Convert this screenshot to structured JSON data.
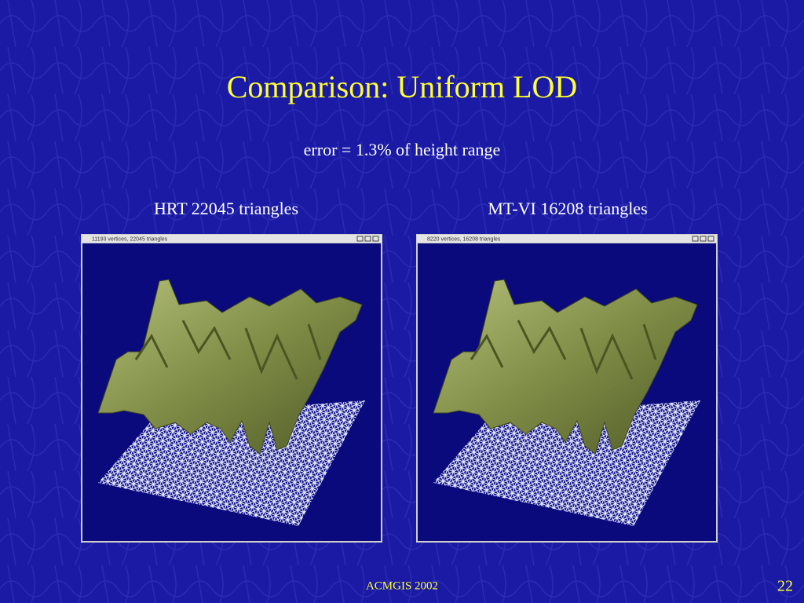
{
  "title": "Comparison: Uniform LOD",
  "subtitle": "error = 1.3% of height range",
  "panels": [
    {
      "caption": "HRT 22045 triangles",
      "window_title": "11193 vertices, 22045 triangles"
    },
    {
      "caption": "MT-VI 16208 triangles",
      "window_title": "8220 vertices, 16208 triangles"
    }
  ],
  "footer": "ACMGIS 2002",
  "page_number": "22"
}
